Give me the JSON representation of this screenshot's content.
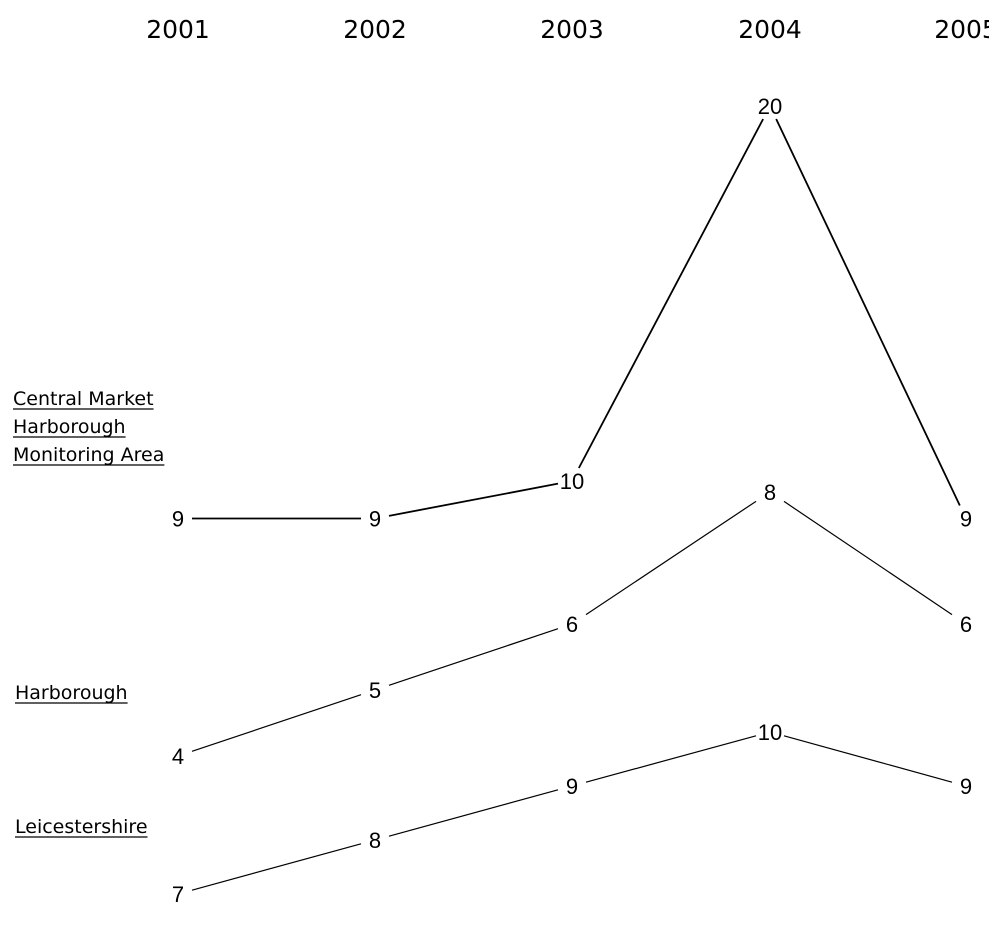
{
  "chart_data": {
    "type": "line",
    "title": "",
    "x": [
      "2001",
      "2002",
      "2003",
      "2004",
      "2005"
    ],
    "series": [
      {
        "name": "Central Market Harborough Monitoring Area",
        "name_lines": [
          "Central Market",
          "Harborough",
          "Monitoring Area"
        ],
        "values": [
          9,
          9,
          10,
          20,
          9
        ]
      },
      {
        "name": "Harborough",
        "name_lines": [
          "Harborough"
        ],
        "values": [
          4,
          5,
          6,
          8,
          6
        ]
      },
      {
        "name": "Leicestershire",
        "name_lines": [
          "Leicestershire"
        ],
        "values": [
          7,
          8,
          9,
          10,
          9
        ]
      }
    ],
    "line_color": "#000000",
    "grid": false,
    "legend": "left, labels beside each series"
  }
}
